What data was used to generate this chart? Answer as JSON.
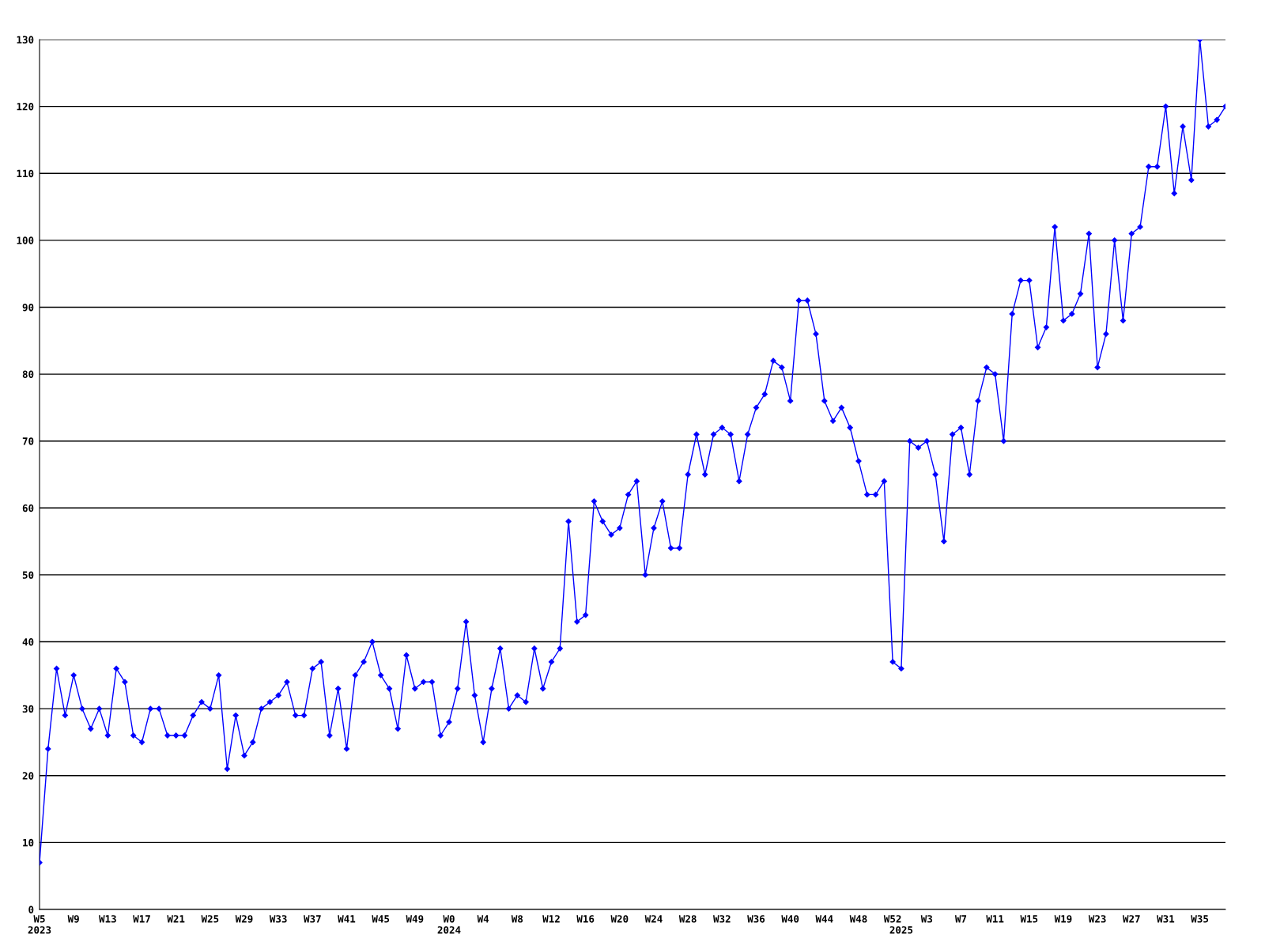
{
  "chart_data": {
    "type": "line",
    "categories": [
      "W5\n2023",
      null,
      null,
      null,
      "W9",
      null,
      null,
      null,
      "W13",
      null,
      null,
      null,
      "W17",
      null,
      null,
      null,
      "W21",
      null,
      null,
      null,
      "W25",
      null,
      null,
      null,
      "W29",
      null,
      null,
      null,
      "W33",
      null,
      null,
      null,
      "W37",
      null,
      null,
      null,
      "W41",
      null,
      null,
      null,
      "W45",
      null,
      null,
      null,
      "W49",
      null,
      null,
      null,
      "W0\n2024",
      null,
      null,
      null,
      "W4",
      null,
      null,
      null,
      "W8",
      null,
      null,
      null,
      "W12",
      null,
      null,
      null,
      "W16",
      null,
      null,
      null,
      "W20",
      null,
      null,
      null,
      "W24",
      null,
      null,
      null,
      "W28",
      null,
      null,
      null,
      "W32",
      null,
      null,
      null,
      "W36",
      null,
      null,
      null,
      "W40",
      null,
      null,
      null,
      "W44",
      null,
      null,
      null,
      "W48",
      null,
      null,
      null,
      "W52",
      "\n2025",
      null,
      null,
      "W3",
      null,
      null,
      null,
      "W7",
      null,
      null,
      null,
      "W11",
      null,
      null,
      null,
      "W15",
      null,
      null,
      null,
      "W19",
      null,
      null,
      null,
      "W23",
      null,
      null,
      null,
      "W27",
      null,
      null,
      null,
      "W31",
      null,
      null,
      null,
      "W35",
      null,
      null,
      null
    ],
    "series": [
      {
        "color": "#0000ff",
        "values": [
          7,
          24,
          36,
          29,
          35,
          30,
          27,
          30,
          26,
          36,
          34,
          26,
          25,
          30,
          30,
          26,
          26,
          26,
          29,
          31,
          30,
          35,
          21,
          29,
          23,
          25,
          30,
          31,
          32,
          34,
          29,
          29,
          36,
          37,
          26,
          33,
          24,
          35,
          37,
          40,
          35,
          33,
          27,
          38,
          33,
          34,
          34,
          26,
          28,
          33,
          43,
          32,
          25,
          33,
          39,
          30,
          32,
          31,
          39,
          33,
          37,
          39,
          58,
          43,
          44,
          61,
          58,
          56,
          57,
          62,
          64,
          50,
          57,
          61,
          54,
          54,
          65,
          71,
          65,
          71,
          72,
          71,
          64,
          71,
          75,
          77,
          82,
          81,
          76,
          91,
          91,
          86,
          76,
          73,
          75,
          72,
          67,
          62,
          62,
          64,
          37,
          36,
          70,
          69,
          70,
          65,
          55,
          71,
          72,
          65,
          76,
          81,
          80,
          70,
          89,
          94,
          94,
          84,
          87,
          102,
          88,
          89,
          92,
          101,
          81,
          86,
          100,
          88,
          101,
          102,
          111,
          111,
          120,
          107,
          117,
          109,
          130,
          117,
          118,
          120
        ]
      }
    ],
    "ylim": [
      0,
      130
    ],
    "yticks": [
      0,
      10,
      20,
      30,
      40,
      50,
      60,
      70,
      80,
      90,
      100,
      110,
      120,
      130
    ],
    "grid": "y",
    "marker": "diamond",
    "line_style": "solid"
  }
}
